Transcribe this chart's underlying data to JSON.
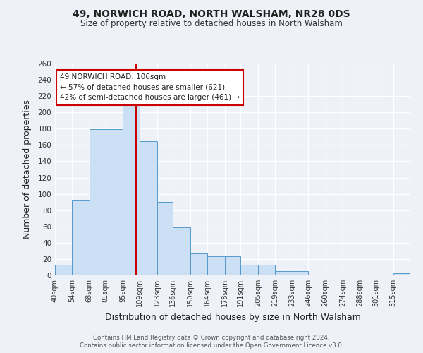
{
  "title": "49, NORWICH ROAD, NORTH WALSHAM, NR28 0DS",
  "subtitle": "Size of property relative to detached houses in North Walsham",
  "xlabel": "Distribution of detached houses by size in North Walsham",
  "ylabel": "Number of detached properties",
  "bin_labels": [
    "40sqm",
    "54sqm",
    "68sqm",
    "81sqm",
    "95sqm",
    "109sqm",
    "123sqm",
    "136sqm",
    "150sqm",
    "164sqm",
    "178sqm",
    "191sqm",
    "205sqm",
    "219sqm",
    "233sqm",
    "246sqm",
    "260sqm",
    "274sqm",
    "288sqm",
    "301sqm",
    "315sqm"
  ],
  "bin_edges": [
    40,
    54,
    68,
    81,
    95,
    109,
    123,
    136,
    150,
    164,
    178,
    191,
    205,
    219,
    233,
    246,
    260,
    274,
    288,
    301,
    315,
    329
  ],
  "values": [
    13,
    93,
    179,
    179,
    210,
    165,
    90,
    59,
    27,
    23,
    23,
    13,
    13,
    5,
    5,
    1,
    1,
    1,
    1,
    1,
    3
  ],
  "bar_color": "#cce0f5",
  "bar_edge_color": "#5599cc",
  "vline_x": 106,
  "vline_color": "#cc0000",
  "annotation_title": "49 NORWICH ROAD: 106sqm",
  "annotation_line1": "← 57% of detached houses are smaller (621)",
  "annotation_line2": "42% of semi-detached houses are larger (461) →",
  "annotation_box_color": "#ffffff",
  "annotation_box_edge_color": "#cc0000",
  "ylim": [
    0,
    260
  ],
  "yticks": [
    0,
    20,
    40,
    60,
    80,
    100,
    120,
    140,
    160,
    180,
    200,
    220,
    240,
    260
  ],
  "footer1": "Contains HM Land Registry data © Crown copyright and database right 2024.",
  "footer2": "Contains public sector information licensed under the Open Government Licence v3.0.",
  "bg_color": "#eef2f8"
}
